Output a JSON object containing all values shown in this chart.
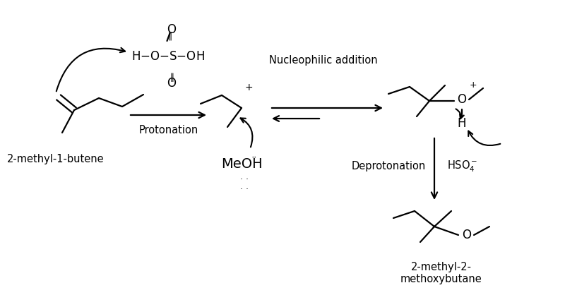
{
  "bg_color": "#ffffff",
  "text_color": "#000000",
  "fig_width": 8.0,
  "fig_height": 4.18,
  "dpi": 100,
  "lw": 1.6,
  "fs_label": 10.5,
  "fs_chem": 11,
  "labels": {
    "reactant_name": "2-methyl-1-butene",
    "product_name": "2-methyl-2-\nmethoxybutane",
    "protonation": "Protonation",
    "nucleophilic": "Nucleophilic addition",
    "deprotonation": "Deprotonation"
  }
}
